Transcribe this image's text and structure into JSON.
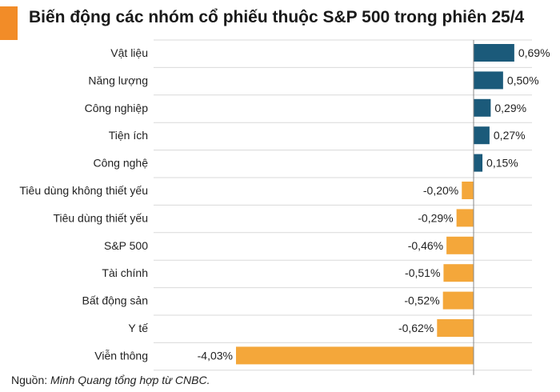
{
  "header": {
    "title": "Biến động các nhóm cổ phiếu thuộc S&P 500 trong phiên 25/4"
  },
  "footer": {
    "source_label": "Nguồn:",
    "source_text": "Minh Quang tổng hợp từ CNBC."
  },
  "colors": {
    "accent": "#f28c28",
    "positive": "#1b5a7a",
    "negative": "#f4a73a",
    "gridline": "#d9d9d9",
    "zeroline": "#888888"
  },
  "chart_data": {
    "type": "bar",
    "orientation": "horizontal",
    "categories": [
      "Vật liệu",
      "Năng lượng",
      "Công nghiệp",
      "Tiện ích",
      "Công nghệ",
      "Tiêu dùng không thiết yếu",
      "Tiêu dùng thiết yếu",
      "S&P 500",
      "Tài chính",
      "Bất động sản",
      "Y tế",
      "Viễn thông"
    ],
    "values": [
      0.69,
      0.5,
      0.29,
      0.27,
      0.15,
      -0.2,
      -0.29,
      -0.46,
      -0.51,
      -0.52,
      -0.62,
      -4.03
    ],
    "labels": [
      "0,69%",
      "0,50%",
      "0,29%",
      "0,27%",
      "0,15%",
      "-0,20%",
      "-0,29%",
      "-0,46%",
      "-0,51%",
      "-0,52%",
      "-0,62%",
      "-4,03%"
    ],
    "unit": "%",
    "xlim": [
      -4.5,
      0.95
    ],
    "grid": "horizontal"
  }
}
